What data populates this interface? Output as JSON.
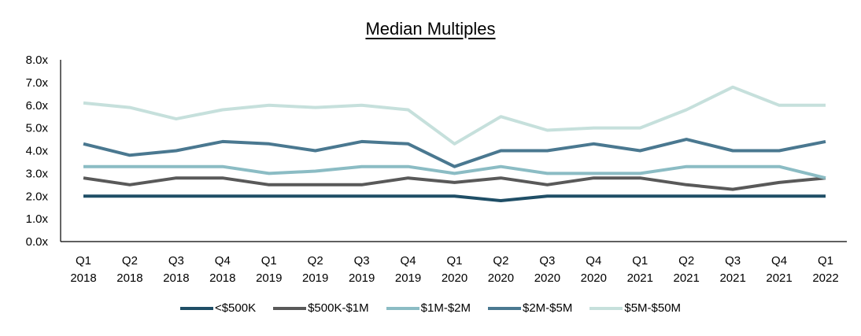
{
  "chart_data": {
    "type": "line",
    "title": "Median Multiples",
    "xlabel": "",
    "ylabel": "",
    "ylim": [
      0,
      8
    ],
    "y_ticks": [
      "0.0x",
      "1.0x",
      "2.0x",
      "3.0x",
      "4.0x",
      "5.0x",
      "6.0x",
      "7.0x",
      "8.0x"
    ],
    "categories": [
      [
        "Q1",
        "2018"
      ],
      [
        "Q2",
        "2018"
      ],
      [
        "Q3",
        "2018"
      ],
      [
        "Q4",
        "2018"
      ],
      [
        "Q1",
        "2019"
      ],
      [
        "Q2",
        "2019"
      ],
      [
        "Q3",
        "2019"
      ],
      [
        "Q4",
        "2019"
      ],
      [
        "Q1",
        "2020"
      ],
      [
        "Q2",
        "2020"
      ],
      [
        "Q3",
        "2020"
      ],
      [
        "Q4",
        "2020"
      ],
      [
        "Q1",
        "2021"
      ],
      [
        "Q2",
        "2021"
      ],
      [
        "Q3",
        "2021"
      ],
      [
        "Q4",
        "2021"
      ],
      [
        "Q1",
        "2022"
      ]
    ],
    "grid": false,
    "legend_position": "bottom",
    "series": [
      {
        "name": "<$500K",
        "color": "#1f4e66",
        "values": [
          2.0,
          2.0,
          2.0,
          2.0,
          2.0,
          2.0,
          2.0,
          2.0,
          2.0,
          1.8,
          2.0,
          2.0,
          2.0,
          2.0,
          2.0,
          2.0,
          2.0
        ]
      },
      {
        "name": "$500K-$1M",
        "color": "#595959",
        "values": [
          2.8,
          2.5,
          2.8,
          2.8,
          2.5,
          2.5,
          2.5,
          2.8,
          2.6,
          2.8,
          2.5,
          2.8,
          2.8,
          2.5,
          2.3,
          2.6,
          2.8
        ]
      },
      {
        "name": "$1M-$2M",
        "color": "#8bbcc4",
        "values": [
          3.3,
          3.3,
          3.3,
          3.3,
          3.0,
          3.1,
          3.3,
          3.3,
          3.0,
          3.3,
          3.0,
          3.0,
          3.0,
          3.3,
          3.3,
          3.3,
          2.8
        ]
      },
      {
        "name": "$2M-$5M",
        "color": "#4a7890",
        "values": [
          4.3,
          3.8,
          4.0,
          4.4,
          4.3,
          4.0,
          4.4,
          4.3,
          3.3,
          4.0,
          4.0,
          4.3,
          4.0,
          4.5,
          4.0,
          4.0,
          4.4
        ]
      },
      {
        "name": "$5M-$50M",
        "color": "#c6e0dc",
        "values": [
          6.1,
          5.9,
          5.4,
          5.8,
          6.0,
          5.9,
          6.0,
          5.8,
          4.3,
          5.5,
          4.9,
          5.0,
          5.0,
          5.8,
          6.8,
          6.0,
          6.0
        ]
      }
    ]
  }
}
